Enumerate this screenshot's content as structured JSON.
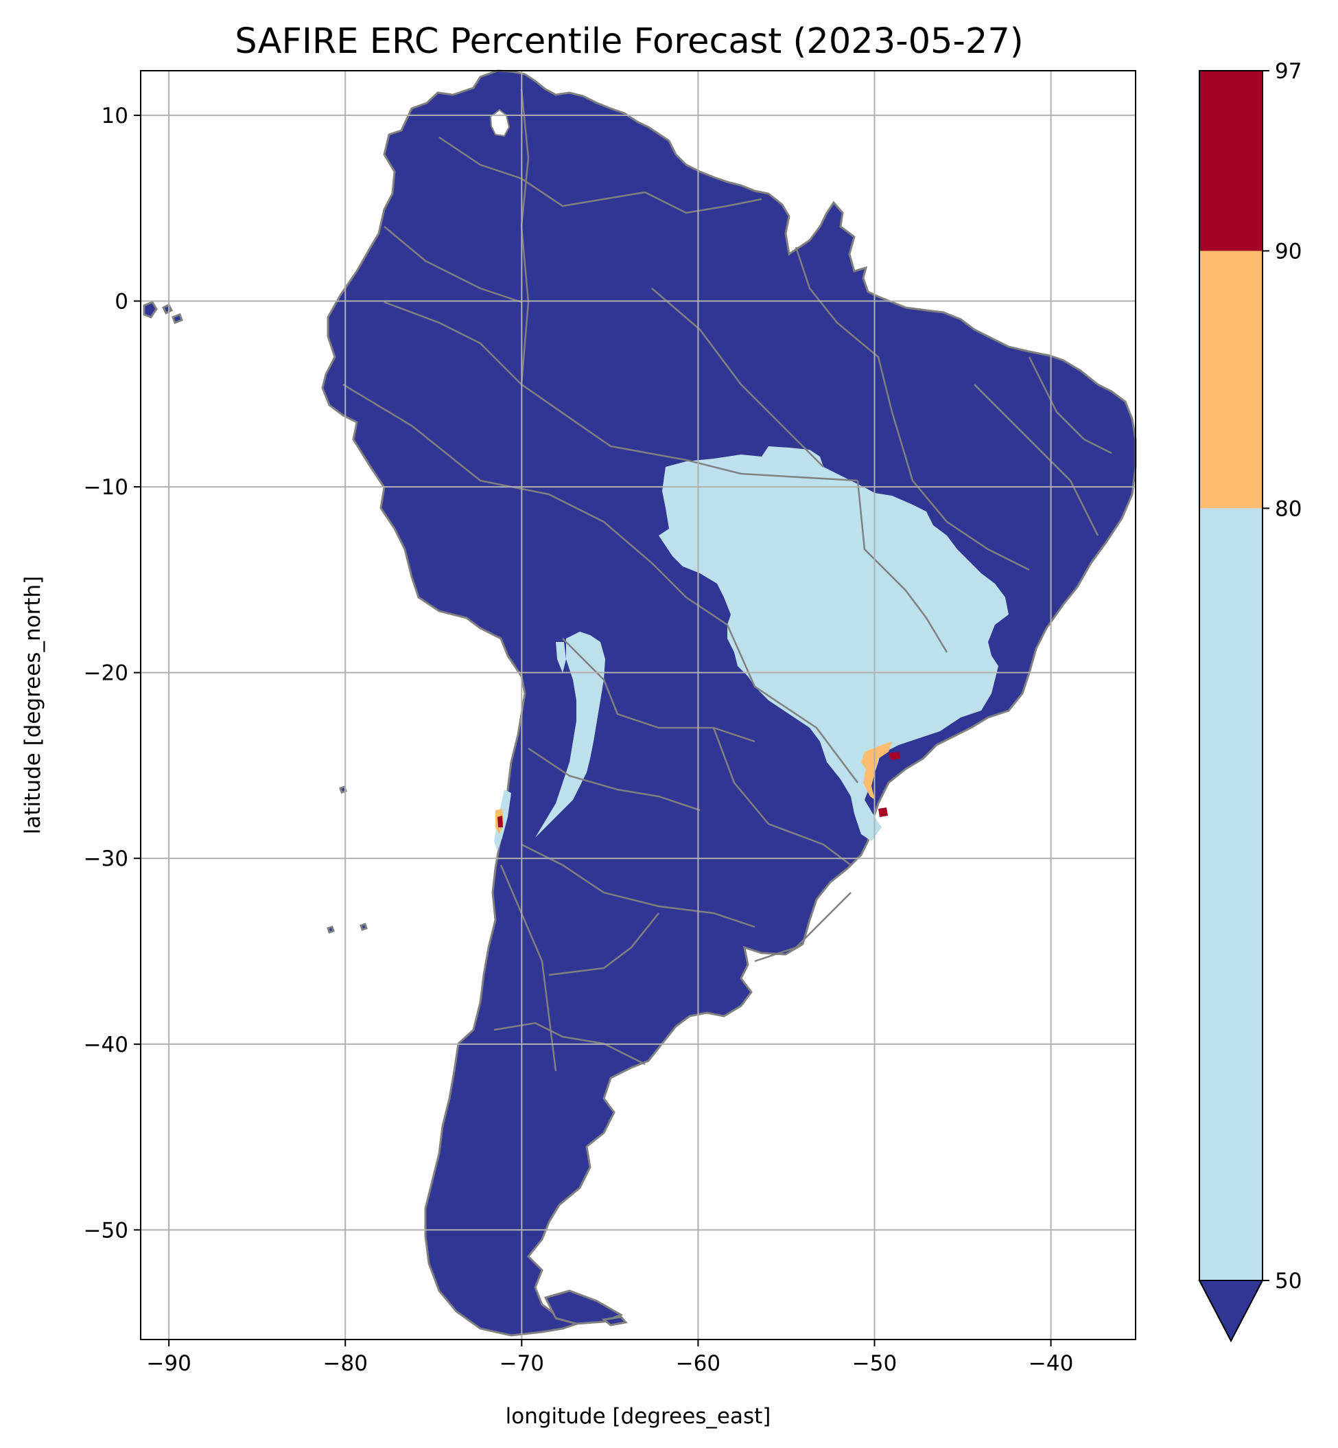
{
  "title": "SAFIRE ERC Percentile Forecast (2023-05-27)",
  "xlabel": "longitude [degrees_east]",
  "ylabel": "latitude [degrees_north]",
  "x_ticks": [
    {
      "value": -90,
      "label": "−90"
    },
    {
      "value": -80,
      "label": "−80"
    },
    {
      "value": -70,
      "label": "−70"
    },
    {
      "value": -60,
      "label": "−60"
    },
    {
      "value": -50,
      "label": "−50"
    },
    {
      "value": -40,
      "label": "−40"
    }
  ],
  "y_ticks": [
    {
      "value": 10,
      "label": "10"
    },
    {
      "value": 0,
      "label": "0"
    },
    {
      "value": -10,
      "label": "−10"
    },
    {
      "value": -20,
      "label": "−20"
    },
    {
      "value": -30,
      "label": "−30"
    },
    {
      "value": -40,
      "label": "−40"
    },
    {
      "value": -50,
      "label": "−50"
    }
  ],
  "xlim": [
    -91.6,
    -35.2
  ],
  "ylim": [
    -55.9,
    12.4
  ],
  "grid": true,
  "colorbar": {
    "levels": [
      50,
      80,
      90,
      97
    ],
    "tick_labels": [
      "50",
      "80",
      "90",
      "97"
    ],
    "extend": "min",
    "bins": [
      {
        "from": 50,
        "to": 80,
        "color": "#bde1ec"
      },
      {
        "from": 80,
        "to": 90,
        "color": "#fcbe6e"
      },
      {
        "from": 90,
        "to": 97,
        "color": "#a50026"
      }
    ],
    "under_color": "#313695"
  },
  "colors": {
    "land_below_50": "#313695",
    "range_50_80": "#bde1ec",
    "range_80_90": "#fcbe6e",
    "range_90_97": "#a50026",
    "borders": "#808080",
    "gridlines": "#b0b0b0"
  }
}
